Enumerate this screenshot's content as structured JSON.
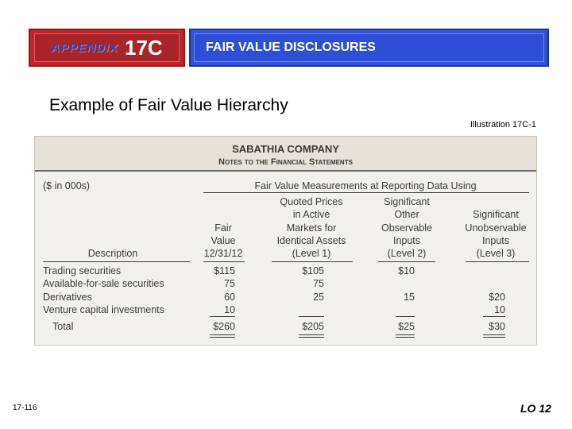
{
  "header": {
    "appendix_word": "APPENDIX",
    "appendix_num": "17C",
    "title": "FAIR VALUE DISCLOSURES"
  },
  "subtitle": "Example of Fair Value Hierarchy",
  "illustration": "Illustration 17C-1",
  "document": {
    "company": "SABATHIA COMPANY",
    "notes": "Notes to the Financial Statements",
    "units": "($ in 000s)",
    "span_header": "Fair Value Measurements at Reporting Data Using",
    "columns": {
      "description": "Description",
      "fair_value": [
        "Fair",
        "Value",
        "12/31/12"
      ],
      "level1": [
        "Quoted Prices",
        "in Active",
        "Markets for",
        "Identical Assets",
        "(Level 1)"
      ],
      "level2": [
        "Significant",
        "Other",
        "Observable",
        "Inputs",
        "(Level 2)"
      ],
      "level3": [
        "Significant",
        "Unobservable",
        "Inputs",
        "(Level 3)"
      ]
    },
    "rows": [
      {
        "desc": "Trading securities",
        "fv": "$115",
        "l1": "$105",
        "l2": "$10",
        "l3": ""
      },
      {
        "desc": "Available-for-sale securities",
        "fv": "75",
        "l1": "75",
        "l2": "",
        "l3": ""
      },
      {
        "desc": "Derivatives",
        "fv": "60",
        "l1": "25",
        "l2": "15",
        "l3": "$20"
      },
      {
        "desc": "Venture capital investments",
        "fv": "10",
        "l1": "",
        "l2": "",
        "l3": "10"
      }
    ],
    "total": {
      "desc": "Total",
      "fv": "$260",
      "l1": "$205",
      "l2": "$25",
      "l3": "$30"
    }
  },
  "footer": {
    "page": "17-116",
    "lo": "LO 12"
  }
}
